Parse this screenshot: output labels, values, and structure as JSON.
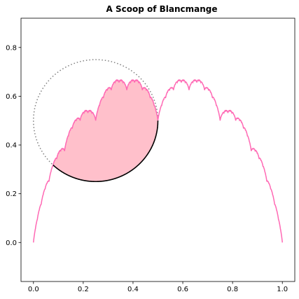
{
  "chart_data": {
    "type": "line",
    "title": "A Scoop of Blancmange",
    "xlabel": "",
    "ylabel": "",
    "xlim": [
      -0.05,
      1.05
    ],
    "ylim": [
      -0.16,
      0.92
    ],
    "x_ticks": [
      0.0,
      0.2,
      0.4,
      0.6,
      0.8,
      1.0
    ],
    "x_tick_labels": [
      "0.0",
      "0.2",
      "0.4",
      "0.6",
      "0.8",
      "1.0"
    ],
    "y_ticks": [
      0.0,
      0.2,
      0.4,
      0.6,
      0.8
    ],
    "y_tick_labels": [
      "0.0",
      "0.2",
      "0.4",
      "0.6",
      "0.8"
    ],
    "grid": false,
    "series": [
      {
        "function": "blancmange (Takagi) curve, sum over n of s(2^n x)/2^n where s is distance to nearest integer",
        "x_range": [
          0,
          1
        ],
        "color": "#ff69b4"
      }
    ],
    "circle": {
      "center": [
        0.25,
        0.5
      ],
      "radius": 0.25,
      "style": "dotted",
      "color": "#808080"
    },
    "scoop": {
      "fill_color": "#ffc0cb",
      "arc_color": "#000000",
      "description_x_range": [
        0.0,
        0.5
      ]
    }
  }
}
